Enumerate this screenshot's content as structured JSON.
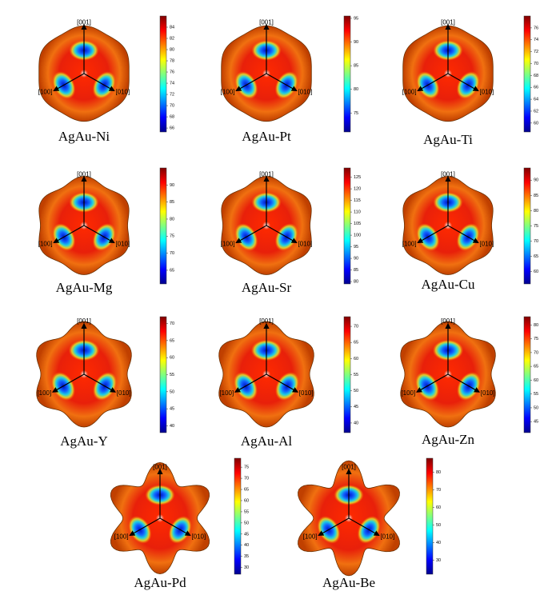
{
  "panels": [
    {
      "label": "AgAu-Ni",
      "colorbar": {
        "lim": [
          65.3,
          86
        ],
        "ticks": [
          66,
          68,
          70,
          72,
          74,
          76,
          78,
          80,
          82,
          84
        ]
      }
    },
    {
      "label": "AgAu-Pt",
      "colorbar": {
        "lim": [
          71,
          95.5
        ],
        "ticks": [
          75,
          80,
          85,
          90,
          95
        ]
      }
    },
    {
      "label": "AgAu-Ti",
      "colorbar": {
        "lim": [
          58.5,
          78
        ],
        "ticks": [
          60,
          62,
          64,
          66,
          68,
          70,
          72,
          74,
          76
        ]
      }
    },
    {
      "label": "AgAu-Mg",
      "colorbar": {
        "lim": [
          61,
          95
        ],
        "ticks": [
          65,
          70,
          75,
          80,
          85,
          90
        ]
      }
    },
    {
      "label": "AgAu-Sr",
      "colorbar": {
        "lim": [
          79,
          129
        ],
        "ticks": [
          80,
          85,
          90,
          95,
          100,
          105,
          110,
          115,
          120,
          125
        ]
      }
    },
    {
      "label": "AgAu-Cu",
      "colorbar": {
        "lim": [
          56,
          94
        ],
        "ticks": [
          60,
          65,
          70,
          75,
          80,
          85,
          90
        ]
      }
    },
    {
      "label": "AgAu-Y",
      "colorbar": {
        "lim": [
          38,
          72
        ],
        "ticks": [
          40,
          45,
          50,
          55,
          60,
          65,
          70
        ]
      }
    },
    {
      "label": "AgAu-Al",
      "colorbar": {
        "lim": [
          37,
          73
        ],
        "ticks": [
          40,
          45,
          50,
          55,
          60,
          65,
          70
        ]
      }
    },
    {
      "label": "AgAu-Zn",
      "colorbar": {
        "lim": [
          41,
          83
        ],
        "ticks": [
          45,
          50,
          55,
          60,
          65,
          70,
          75,
          80
        ]
      }
    },
    {
      "label": "AgAu-Pd",
      "colorbar": {
        "lim": [
          27,
          79
        ],
        "ticks": [
          30,
          35,
          40,
          45,
          50,
          55,
          60,
          65,
          70,
          75
        ]
      }
    },
    {
      "label": "AgAu-Be",
      "colorbar": {
        "lim": [
          22,
          88
        ],
        "ticks": [
          30,
          40,
          50,
          60,
          70,
          80
        ]
      }
    }
  ],
  "directions": {
    "top": "[001]",
    "left": "[100]",
    "right": "[010]"
  }
}
